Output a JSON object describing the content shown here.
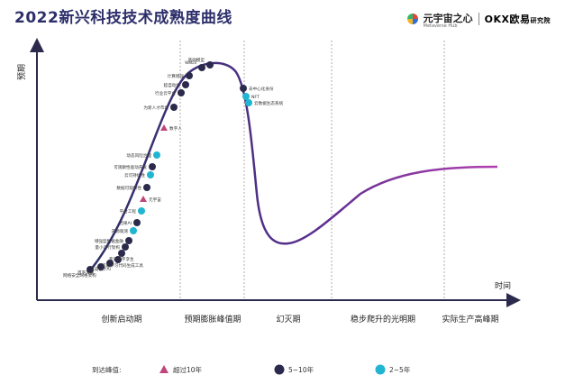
{
  "title": "2022新兴科技技术成熟度曲线",
  "brand": {
    "name": "元宇宙之心",
    "sub": "Metaverse Hub",
    "partner": "OKX欧易",
    "partner_suffix": "研究院"
  },
  "chart_data": {
    "type": "line",
    "title": "2022新兴科技技术成熟度曲线",
    "xlabel": "时间",
    "ylabel": "预期",
    "phases": [
      "创新启动期",
      "预期膨胀峰值期",
      "幻灭期",
      "稳步爬升的光明期",
      "实际生产高峰期"
    ],
    "legend_title": "到达峰值:",
    "legend": [
      {
        "key": "10plus",
        "label": "超过10年",
        "marker": "triangle",
        "color": "#c0457a"
      },
      {
        "key": "5to10",
        "label": "5~10年",
        "marker": "circle",
        "color": "#2b2a4c"
      },
      {
        "key": "2to5",
        "label": "2~5年",
        "marker": "circle",
        "color": "#21b5d1"
      }
    ],
    "points": [
      {
        "label": "网络安全网格架构",
        "type": "5to10"
      },
      {
        "label": "首字风暴",
        "type": "5to10"
      },
      {
        "label": "生成设计AI",
        "type": "5to10"
      },
      {
        "label": "机器学习代码生成工具",
        "type": "5to10"
      },
      {
        "label": "客户数字孪生",
        "type": "5to10"
      },
      {
        "label": "量小可行架构",
        "type": "5to10"
      },
      {
        "label": "增强型数据金融",
        "type": "5to10"
      },
      {
        "label": "开源观测",
        "type": "2to5"
      },
      {
        "label": "因果AI",
        "type": "5to10"
      },
      {
        "label": "平台工程",
        "type": "2to5"
      },
      {
        "label": "元宇宙",
        "type": "10plus"
      },
      {
        "label": "数据可观察性",
        "type": "5to10"
      },
      {
        "label": "云可持续性",
        "type": "2to5"
      },
      {
        "label": "可观察性驱动开发",
        "type": "5to10"
      },
      {
        "label": "动态风险治理",
        "type": "2to5"
      },
      {
        "label": "数字人",
        "type": "10plus"
      },
      {
        "label": "为新人才市场",
        "type": "5to10"
      },
      {
        "label": "行业云平台",
        "type": "5to10"
      },
      {
        "label": "超自动化",
        "type": "5to10"
      },
      {
        "label": "计算增强",
        "type": "5to10"
      },
      {
        "label": "Web3",
        "type": "5to10"
      },
      {
        "label": "基础模型",
        "type": "5to10"
      },
      {
        "label": "去中心化身份",
        "type": "5to10"
      },
      {
        "label": "NFT",
        "type": "2to5"
      },
      {
        "label": "云数据生态系统",
        "type": "2to5"
      }
    ]
  }
}
